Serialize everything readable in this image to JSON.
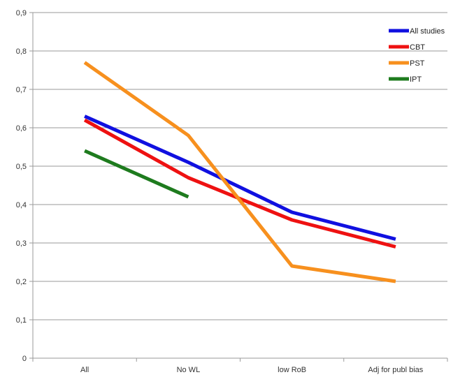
{
  "chart_data": {
    "type": "line",
    "title": "",
    "xlabel": "",
    "ylabel": "",
    "categories": [
      "All",
      "No WL",
      "low RoB",
      "Adj for publ bias"
    ],
    "ylim": [
      0,
      0.9
    ],
    "yticks": [
      0,
      0.1,
      0.2,
      0.3,
      0.4,
      0.5,
      0.6,
      0.7,
      0.8,
      0.9
    ],
    "ytick_labels": [
      "0",
      "0,1",
      "0,2",
      "0,3",
      "0,4",
      "0,5",
      "0,6",
      "0,7",
      "0,8",
      "0,9"
    ],
    "grid": true,
    "legend_position": "top-right",
    "series": [
      {
        "name": "All studies",
        "color": "#1010e0",
        "values": [
          0.63,
          0.51,
          0.38,
          0.31
        ]
      },
      {
        "name": "CBT",
        "color": "#ee1111",
        "values": [
          0.62,
          0.47,
          0.36,
          0.29
        ]
      },
      {
        "name": "PST",
        "color": "#f7901e",
        "values": [
          0.77,
          0.58,
          0.24,
          0.2
        ]
      },
      {
        "name": "IPT",
        "color": "#1e7b1e",
        "values": [
          0.54,
          0.42,
          null,
          null
        ]
      }
    ]
  }
}
